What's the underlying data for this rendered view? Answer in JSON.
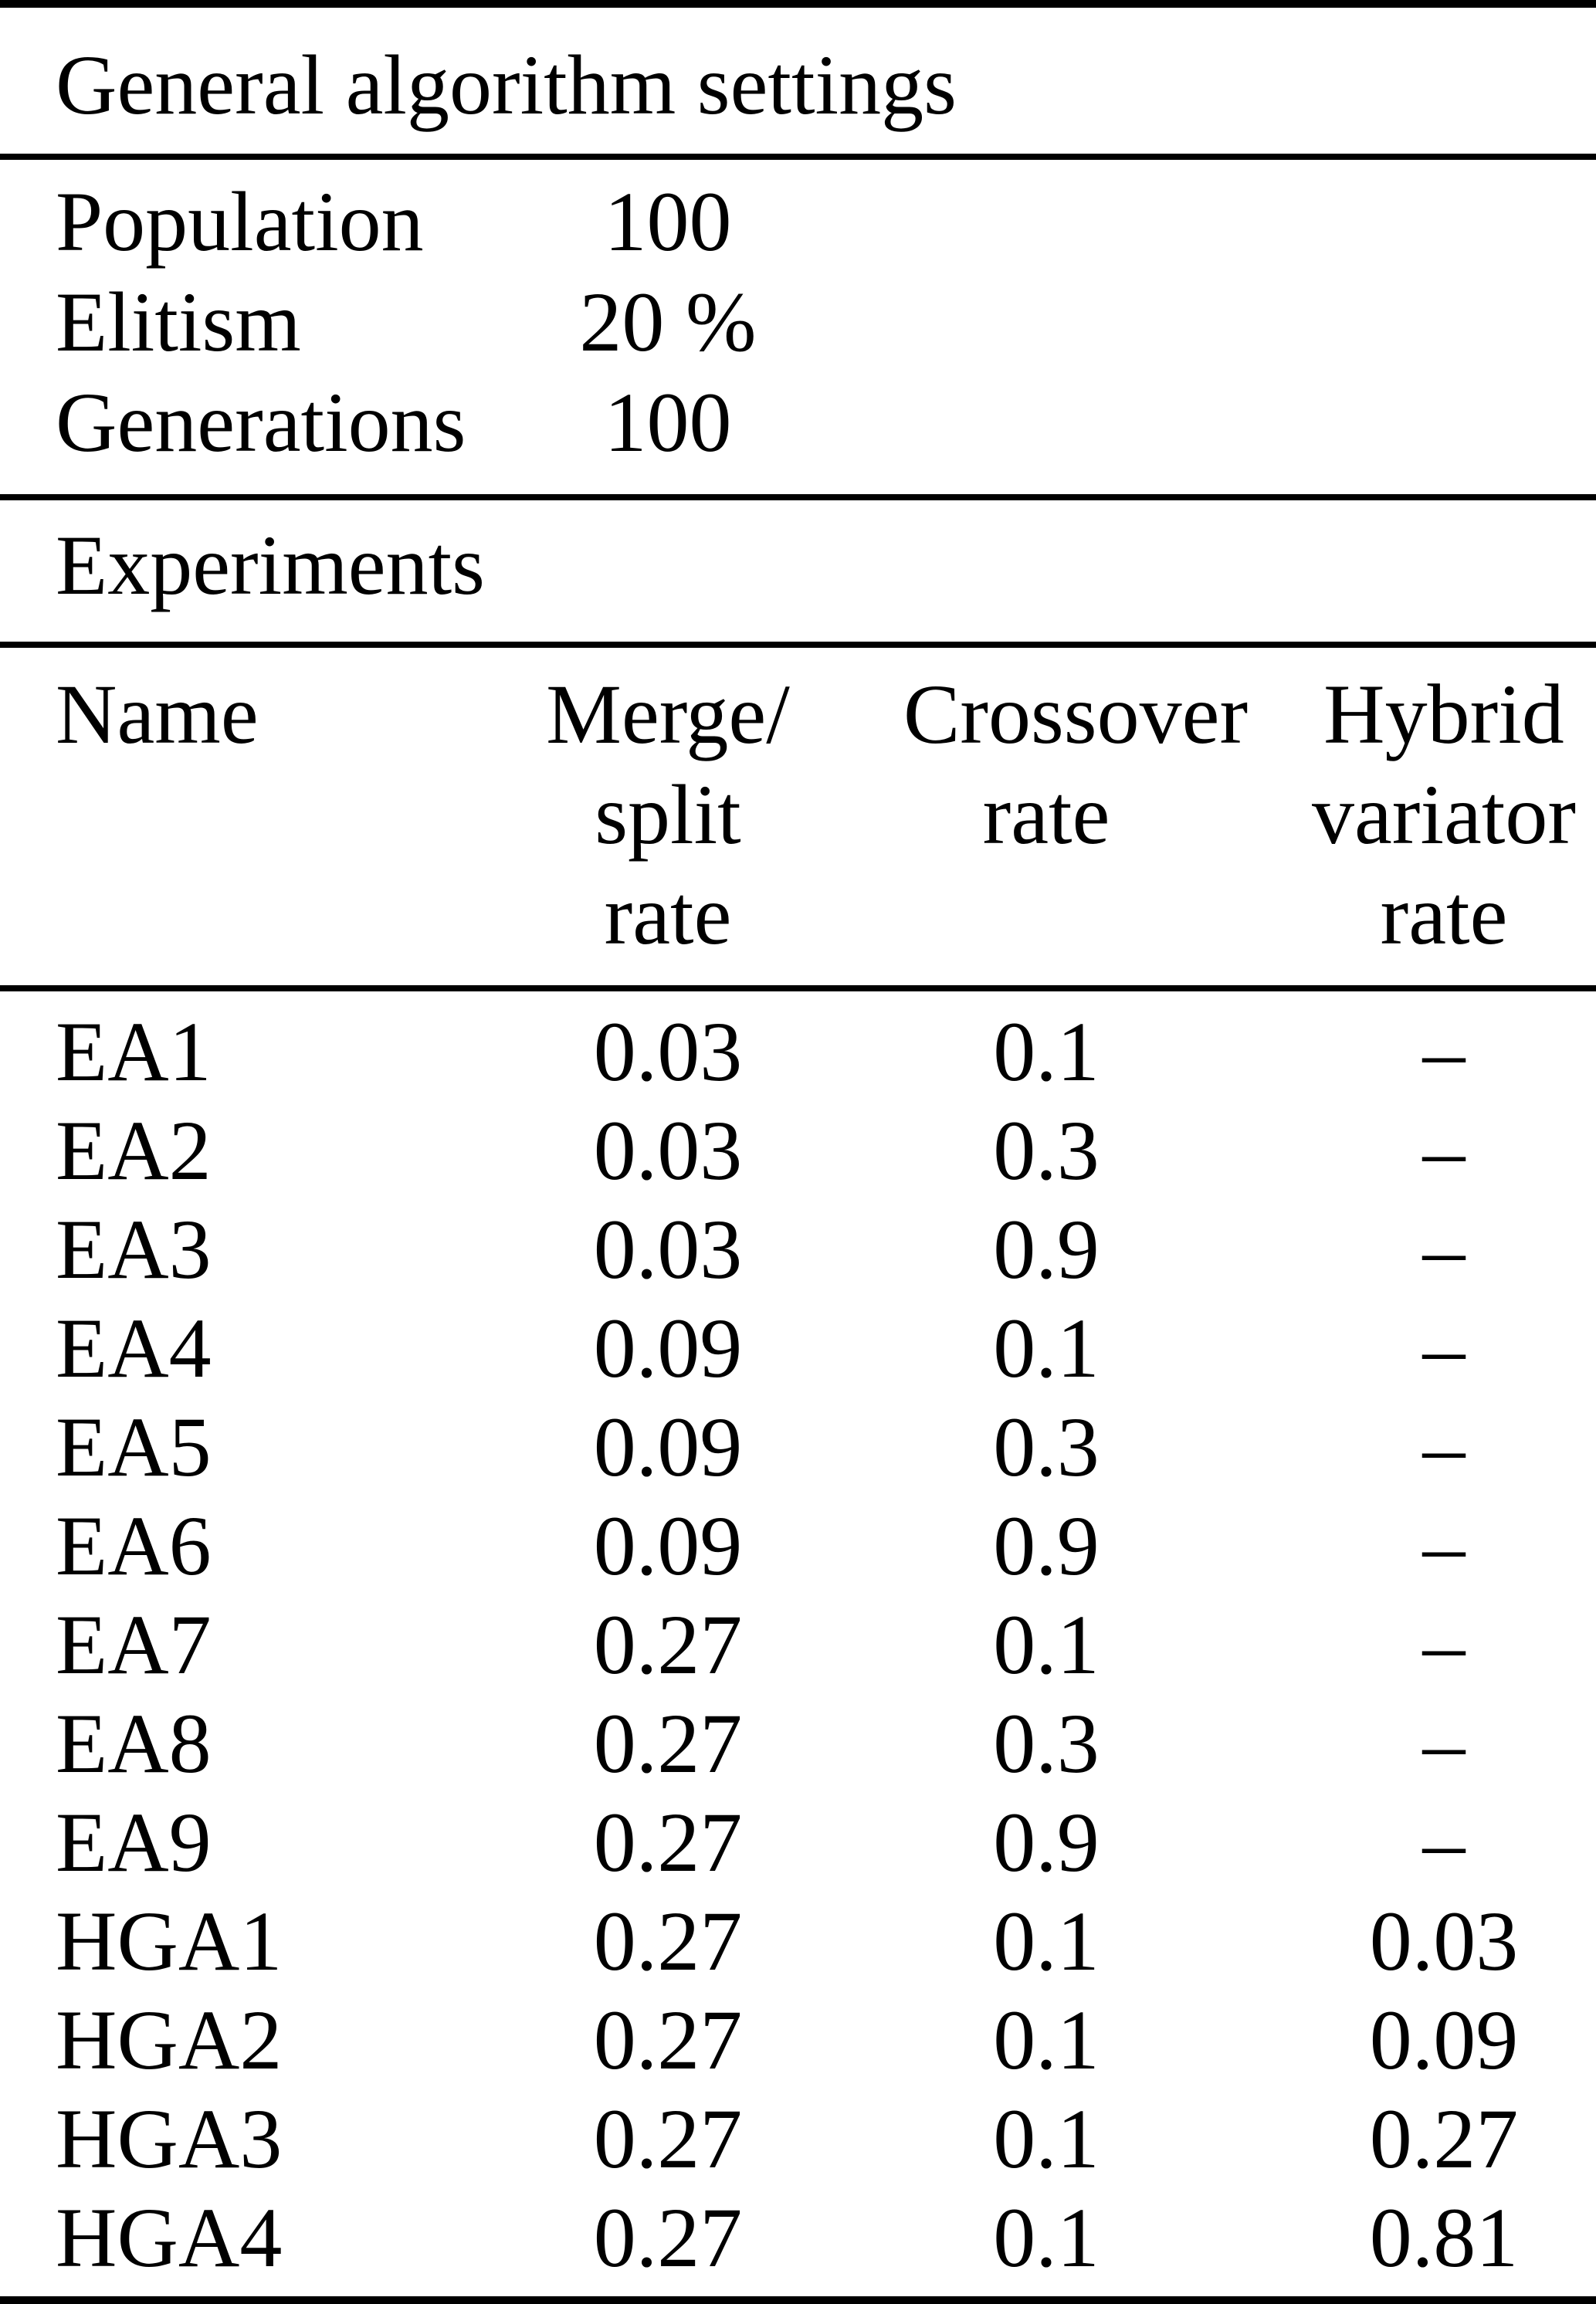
{
  "table": {
    "general_section": {
      "title": "General algorithm settings"
    },
    "settings": [
      {
        "label": "Population",
        "value": "100"
      },
      {
        "label": "Elitism",
        "value": "20 %"
      },
      {
        "label": "Generations",
        "value": "100"
      }
    ],
    "experiments_section": {
      "title": "Experiments"
    },
    "header": {
      "name": "Name",
      "merge_split": [
        "Merge/",
        "split",
        "rate"
      ],
      "crossover": [
        "Crossover",
        "rate"
      ],
      "hybrid": [
        "Hybrid",
        "variator",
        "rate"
      ]
    },
    "rows": [
      [
        "EA1",
        "0.03",
        "0.1",
        "–"
      ],
      [
        "EA2",
        "0.03",
        "0.3",
        "–"
      ],
      [
        "EA3",
        "0.03",
        "0.9",
        "–"
      ],
      [
        "EA4",
        "0.09",
        "0.1",
        "–"
      ],
      [
        "EA5",
        "0.09",
        "0.3",
        "–"
      ],
      [
        "EA6",
        "0.09",
        "0.9",
        "–"
      ],
      [
        "EA7",
        "0.27",
        "0.1",
        "–"
      ],
      [
        "EA8",
        "0.27",
        "0.3",
        "–"
      ],
      [
        "EA9",
        "0.27",
        "0.9",
        "–"
      ],
      [
        "HGA1",
        "0.27",
        "0.1",
        "0.03"
      ],
      [
        "HGA2",
        "0.27",
        "0.1",
        "0.09"
      ],
      [
        "HGA3",
        "0.27",
        "0.1",
        "0.27"
      ],
      [
        "HGA4",
        "0.27",
        "0.1",
        "0.81"
      ]
    ]
  },
  "colors": {
    "text": "#000000",
    "background": "#ffffff",
    "rule": "#000000"
  }
}
